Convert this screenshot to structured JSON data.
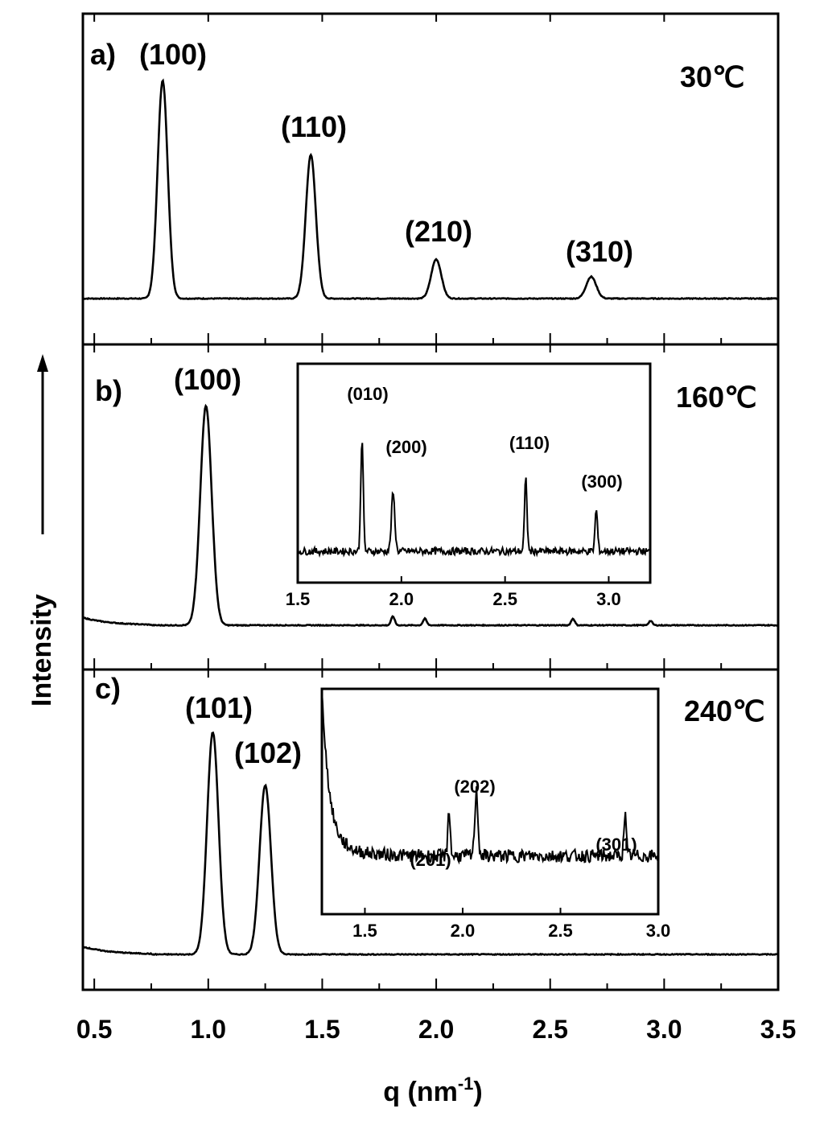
{
  "chart_data": {
    "type": "line",
    "xlabel": "q (nm",
    "xlabel_sup": "-1",
    "xlabel_end": ")",
    "ylabel": "Intensity",
    "xlim": [
      0.45,
      3.5
    ],
    "xticks": [
      "0.5",
      "1.0",
      "1.5",
      "2.0",
      "2.5",
      "3.0",
      "3.5"
    ],
    "xtick_values": [
      0.5,
      1.0,
      1.5,
      2.0,
      2.5,
      3.0,
      3.5
    ],
    "y_axis_ticks": false,
    "panels": [
      {
        "id": "a",
        "panel_label": "a)",
        "temperature": "30℃",
        "baseline": 0.0,
        "peaks": [
          {
            "label": "(100)",
            "q": 0.8,
            "height": 1.0,
            "width": 0.022
          },
          {
            "label": "(110)",
            "q": 1.45,
            "height": 0.66,
            "width": 0.022
          },
          {
            "label": "(210)",
            "q": 2.0,
            "height": 0.18,
            "width": 0.022
          },
          {
            "label": "(310)",
            "q": 2.68,
            "height": 0.1,
            "width": 0.022
          }
        ]
      },
      {
        "id": "b",
        "panel_label": "b)",
        "temperature": "160℃",
        "baseline": 0.0,
        "peaks": [
          {
            "label": "(100)",
            "q": 0.99,
            "height": 1.0,
            "width": 0.025
          },
          {
            "label": "",
            "q": 1.81,
            "height": 0.04,
            "width": 0.008
          },
          {
            "label": "",
            "q": 1.95,
            "height": 0.03,
            "width": 0.008
          },
          {
            "label": "",
            "q": 2.6,
            "height": 0.03,
            "width": 0.008
          },
          {
            "label": "",
            "q": 2.94,
            "height": 0.02,
            "width": 0.008
          }
        ],
        "inset": {
          "xlim": [
            1.5,
            3.2
          ],
          "xticks": [
            "1.5",
            "2.0",
            "2.5",
            "3.0"
          ],
          "xtick_values": [
            1.5,
            2.0,
            2.5,
            3.0
          ],
          "baseline": 0.12,
          "peaks": [
            {
              "label": "(010)",
              "q": 1.81,
              "height": 0.82,
              "width": 0.006
            },
            {
              "label": "(200)",
              "q": 1.96,
              "height": 0.42,
              "width": 0.008
            },
            {
              "label": "(110)",
              "q": 2.6,
              "height": 0.52,
              "width": 0.006
            },
            {
              "label": "(300)",
              "q": 2.94,
              "height": 0.3,
              "width": 0.006
            }
          ]
        }
      },
      {
        "id": "c",
        "panel_label": "c)",
        "temperature": "240℃",
        "baseline": 0.0,
        "peaks": [
          {
            "label": "(101)",
            "q": 1.02,
            "height": 1.0,
            "width": 0.025
          },
          {
            "label": "(102)",
            "q": 1.25,
            "height": 0.76,
            "width": 0.025
          }
        ],
        "inset": {
          "xlim": [
            1.28,
            3.0
          ],
          "xticks": [
            "1.5",
            "2.0",
            "2.5",
            "3.0"
          ],
          "xtick_values": [
            1.5,
            2.0,
            2.5,
            3.0
          ],
          "baseline": 0.18,
          "peaks": [
            {
              "label": "(201)",
              "q": 1.93,
              "height": 0.3,
              "width": 0.006
            },
            {
              "label": "(202)",
              "q": 2.07,
              "height": 0.4,
              "width": 0.008
            },
            {
              "label": "(301)",
              "q": 2.83,
              "height": 0.26,
              "width": 0.006
            }
          ]
        }
      }
    ]
  }
}
